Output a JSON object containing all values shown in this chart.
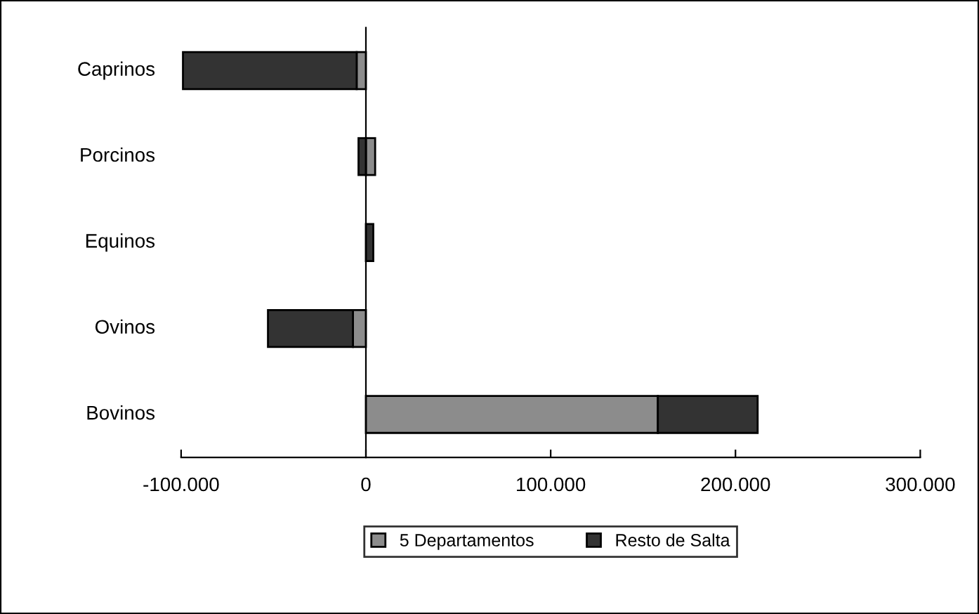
{
  "chart_data": {
    "type": "bar",
    "orientation": "horizontal",
    "stacked": true,
    "categories": [
      "Caprinos",
      "Porcinos",
      "Equinos",
      "Ovinos",
      "Bovinos"
    ],
    "series": [
      {
        "name": "5 Departamentos",
        "color": "#8c8c8c",
        "values": [
          -5000,
          5000,
          null,
          -7000,
          158000
        ]
      },
      {
        "name": "Resto de Salta",
        "color": "#333333",
        "values": [
          -94000,
          -4000,
          4000,
          -46000,
          54000
        ]
      }
    ],
    "xlim": [
      -100000,
      300000
    ],
    "xticks": [
      {
        "value": -100000,
        "label": "-100.000"
      },
      0,
      {
        "value": 100000,
        "label": "100.000"
      },
      {
        "value": 200000,
        "label": "200.000"
      },
      {
        "value": 300000,
        "label": "300.000"
      }
    ],
    "legend": "bottom"
  }
}
